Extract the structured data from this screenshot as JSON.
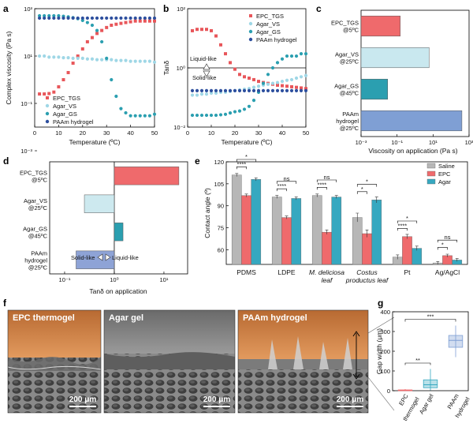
{
  "panel_letters": [
    "a",
    "b",
    "c",
    "d",
    "e",
    "f",
    "g"
  ],
  "colors": {
    "epc": "#e8565a",
    "agar_vs": "#9fd7e6",
    "agar_gs": "#2b9fb0",
    "paam": "#2d4f9e",
    "saline": "#b7b7b7",
    "epc_bar": "#ef6a6c",
    "agar_bar": "#36a8c0",
    "c_paam": "#7f9fd4",
    "d_paam": "#8ea3d6"
  },
  "chart_data": [
    {
      "id": "a",
      "type": "scatter",
      "xlabel": "Temperature (ºC)",
      "ylabel": "Complex viscosity (Pa s)",
      "xlim": [
        0,
        50
      ],
      "ylim": [
        0.01,
        1000
      ],
      "yscale": "log",
      "xticks": [
        "0",
        "10",
        "20",
        "30",
        "40",
        "50"
      ],
      "yticks": [
        "10⁻³",
        "10⁻¹",
        "10¹",
        "10³"
      ],
      "legend": [
        "EPC_TGS",
        "Agar_VS",
        "Agar_GS",
        "PAAm hydrogel"
      ],
      "series": [
        {
          "name": "EPC_TGS",
          "x": [
            2,
            4,
            6,
            8,
            10,
            12,
            14,
            16,
            18,
            20,
            22,
            24,
            26,
            28,
            30,
            32,
            34,
            36,
            38,
            40,
            42,
            44,
            46,
            48,
            50
          ],
          "y": [
            0.25,
            0.25,
            0.26,
            0.3,
            0.5,
            1,
            2,
            5,
            10,
            20,
            40,
            60,
            90,
            120,
            160,
            200,
            220,
            240,
            260,
            280,
            300,
            300,
            300,
            300,
            300
          ]
        },
        {
          "name": "Agar_VS",
          "x": [
            2,
            4,
            6,
            8,
            10,
            12,
            14,
            16,
            18,
            20,
            22,
            24,
            26,
            28,
            30,
            32,
            34,
            36,
            38,
            40,
            42,
            44,
            46,
            48,
            50
          ],
          "y": [
            10,
            10,
            9,
            9,
            9,
            8.5,
            8.5,
            8,
            8,
            8,
            7.5,
            7.5,
            7,
            7,
            7,
            7,
            6.5,
            6.5,
            6.5,
            6,
            6,
            6,
            6,
            6,
            5.5
          ]
        },
        {
          "name": "Agar_GS",
          "x": [
            2,
            4,
            6,
            8,
            10,
            12,
            14,
            16,
            18,
            20,
            22,
            24,
            26,
            28,
            30,
            32,
            34,
            36,
            38,
            40,
            42,
            44,
            46,
            48,
            50
          ],
          "y": [
            500,
            500,
            500,
            500,
            500,
            480,
            450,
            420,
            380,
            320,
            260,
            200,
            120,
            40,
            8,
            1,
            0.2,
            0.06,
            0.04,
            0.03,
            0.03,
            0.03,
            0.03,
            0.03,
            0.035
          ]
        },
        {
          "name": "PAAm hydrogel",
          "x": [
            2,
            4,
            6,
            8,
            10,
            12,
            14,
            16,
            18,
            20,
            22,
            24,
            26,
            28,
            30,
            32,
            34,
            36,
            38,
            40,
            42,
            44,
            46,
            48,
            50
          ],
          "y": [
            400,
            400,
            400,
            400,
            400,
            400,
            400,
            400,
            400,
            400,
            400,
            400,
            400,
            400,
            400,
            400,
            400,
            400,
            400,
            400,
            400,
            400,
            400,
            400,
            400
          ]
        }
      ]
    },
    {
      "id": "b",
      "type": "scatter",
      "xlabel": "Temperature (ºC)",
      "ylabel": "Tanδ",
      "xlim": [
        0,
        50
      ],
      "ylim": [
        0.01,
        100
      ],
      "yscale": "log",
      "xticks": [
        "0",
        "10",
        "20",
        "30",
        "40",
        "50"
      ],
      "yticks": [
        "10⁻²",
        "10⁰",
        "10²"
      ],
      "legend": [
        "EPC_TGS",
        "Agar_VS",
        "Agar_GS",
        "PAAm hydrogel"
      ],
      "annotations": [
        "Liquid-like",
        "Solid-like"
      ],
      "series": [
        {
          "name": "EPC_TGS",
          "x": [
            2,
            4,
            6,
            8,
            10,
            12,
            14,
            16,
            18,
            20,
            22,
            24,
            26,
            28,
            30,
            32,
            34,
            36,
            38,
            40,
            42,
            44,
            46,
            48,
            50
          ],
          "y": [
            18,
            20,
            20,
            20,
            18,
            12,
            6,
            3,
            1.5,
            0.9,
            0.6,
            0.5,
            0.45,
            0.4,
            0.35,
            0.32,
            0.3,
            0.28,
            0.26,
            0.25,
            0.24,
            0.23,
            0.22,
            0.21,
            0.2
          ]
        },
        {
          "name": "Agar_VS",
          "x": [
            2,
            4,
            6,
            8,
            10,
            12,
            14,
            16,
            18,
            20,
            22,
            24,
            26,
            28,
            30,
            32,
            34,
            36,
            38,
            40,
            42,
            44,
            46,
            48,
            50
          ],
          "y": [
            0.12,
            0.12,
            0.13,
            0.13,
            0.14,
            0.14,
            0.15,
            0.15,
            0.16,
            0.17,
            0.18,
            0.19,
            0.2,
            0.22,
            0.24,
            0.26,
            0.28,
            0.3,
            0.32,
            0.35,
            0.38,
            0.4,
            0.45,
            0.5,
            0.55
          ]
        },
        {
          "name": "Agar_GS",
          "x": [
            2,
            4,
            6,
            8,
            10,
            12,
            14,
            16,
            18,
            20,
            22,
            24,
            26,
            28,
            30,
            32,
            34,
            36,
            38,
            40,
            42,
            44,
            46,
            48,
            50
          ],
          "y": [
            0.025,
            0.025,
            0.025,
            0.025,
            0.025,
            0.025,
            0.026,
            0.027,
            0.03,
            0.033,
            0.035,
            0.04,
            0.05,
            0.08,
            0.15,
            0.3,
            0.6,
            1,
            1.5,
            2,
            2.5,
            2.5,
            2.5,
            3,
            3
          ]
        },
        {
          "name": "PAAm hydrogel",
          "x": [
            2,
            4,
            6,
            8,
            10,
            12,
            14,
            16,
            18,
            20,
            22,
            24,
            26,
            28,
            30,
            32,
            34,
            36,
            38,
            40,
            42,
            44,
            46,
            48,
            50
          ],
          "y": [
            0.17,
            0.17,
            0.17,
            0.17,
            0.17,
            0.17,
            0.17,
            0.17,
            0.17,
            0.17,
            0.17,
            0.17,
            0.17,
            0.17,
            0.17,
            0.17,
            0.17,
            0.17,
            0.17,
            0.17,
            0.17,
            0.17,
            0.17,
            0.17,
            0.17
          ]
        }
      ]
    },
    {
      "id": "c",
      "type": "bar",
      "orientation": "horizontal",
      "xscale": "log",
      "xlabel": "Viscosity on application (Pa s)",
      "categories": [
        "EPC_TGS @5ºC",
        "Agar_VS @25ºC",
        "Agar_GS @45ºC",
        "PAAm hydrogel @25ºC"
      ],
      "values": [
        0.15,
        6,
        0.03,
        400
      ],
      "xlim": [
        0.001,
        1000
      ],
      "xticks": [
        "10⁻³",
        "10⁻¹",
        "10¹",
        "10³"
      ]
    },
    {
      "id": "d",
      "type": "bar",
      "orientation": "horizontal",
      "xscale": "log",
      "xlabel": "Tanδ on application",
      "categories": [
        "EPC_TGS @5ºC",
        "Agar_VS @25ºC",
        "Agar_GS @45ºC",
        "PAAm hydrogel @25ºC"
      ],
      "values": [
        20,
        0.25,
        1.5,
        0.17
      ],
      "xlim": [
        0.05,
        30
      ],
      "xticks": [
        "10⁻¹",
        "10⁰",
        "10¹"
      ],
      "annotations": [
        "Solid-like",
        "Liquid-like"
      ]
    },
    {
      "id": "e",
      "type": "bar",
      "ylabel": "Contact angle (º)",
      "categories": [
        "PDMS",
        "LDPE",
        "M. deliciosa leaf",
        "Costus productus leaf",
        "Pt",
        "Ag/AgCl"
      ],
      "ylim": [
        50,
        120
      ],
      "yticks": [
        "60",
        "75",
        "90",
        "105",
        "120"
      ],
      "legend": [
        "Saline",
        "EPC",
        "Agar"
      ],
      "series": [
        {
          "name": "Saline",
          "values": [
            111,
            96,
            97,
            82,
            55,
            51
          ],
          "errors": [
            1,
            1,
            1,
            3,
            1.5,
            1
          ]
        },
        {
          "name": "EPC",
          "values": [
            97,
            82,
            72,
            71,
            69,
            56
          ],
          "errors": [
            1,
            1,
            1.5,
            2.5,
            1.5,
            1
          ]
        },
        {
          "name": "Agar",
          "values": [
            108,
            95,
            96,
            94,
            61,
            53
          ],
          "errors": [
            1,
            1,
            1,
            2,
            1.5,
            1
          ]
        }
      ],
      "significance": [
        {
          "group": "PDMS",
          "labels": [
            "****",
            "*"
          ]
        },
        {
          "group": "LDPE",
          "labels": [
            "****",
            "ns"
          ]
        },
        {
          "group": "M. deliciosa leaf",
          "labels": [
            "****",
            "ns"
          ]
        },
        {
          "group": "Costus productus leaf",
          "labels": [
            "*",
            "*"
          ]
        },
        {
          "group": "Pt",
          "labels": [
            "****",
            "*"
          ]
        },
        {
          "group": "Ag/AgCl",
          "labels": [
            "*",
            "ns"
          ]
        }
      ]
    },
    {
      "id": "g",
      "type": "box",
      "ylabel": "Gap width (μm)",
      "categories": [
        "EPC thermogel",
        "Agar gel",
        "PAAm hydrogel"
      ],
      "ylim": [
        0,
        400
      ],
      "yticks": [
        "0",
        "100",
        "200",
        "300",
        "400"
      ],
      "boxes": [
        {
          "min": 0,
          "q1": 1,
          "median": 2,
          "q3": 4,
          "max": 8
        },
        {
          "min": 2,
          "q1": 15,
          "median": 30,
          "q3": 55,
          "max": 110
        },
        {
          "min": 170,
          "q1": 220,
          "median": 255,
          "q3": 280,
          "max": 330
        }
      ],
      "significance": [
        "**",
        "***"
      ]
    }
  ],
  "micrographs": [
    {
      "title": "EPC thermogel",
      "scale": "200 μm"
    },
    {
      "title": "Agar gel",
      "scale": "200 μm"
    },
    {
      "title": "PAAm hydrogel",
      "scale": "200 μm"
    }
  ]
}
